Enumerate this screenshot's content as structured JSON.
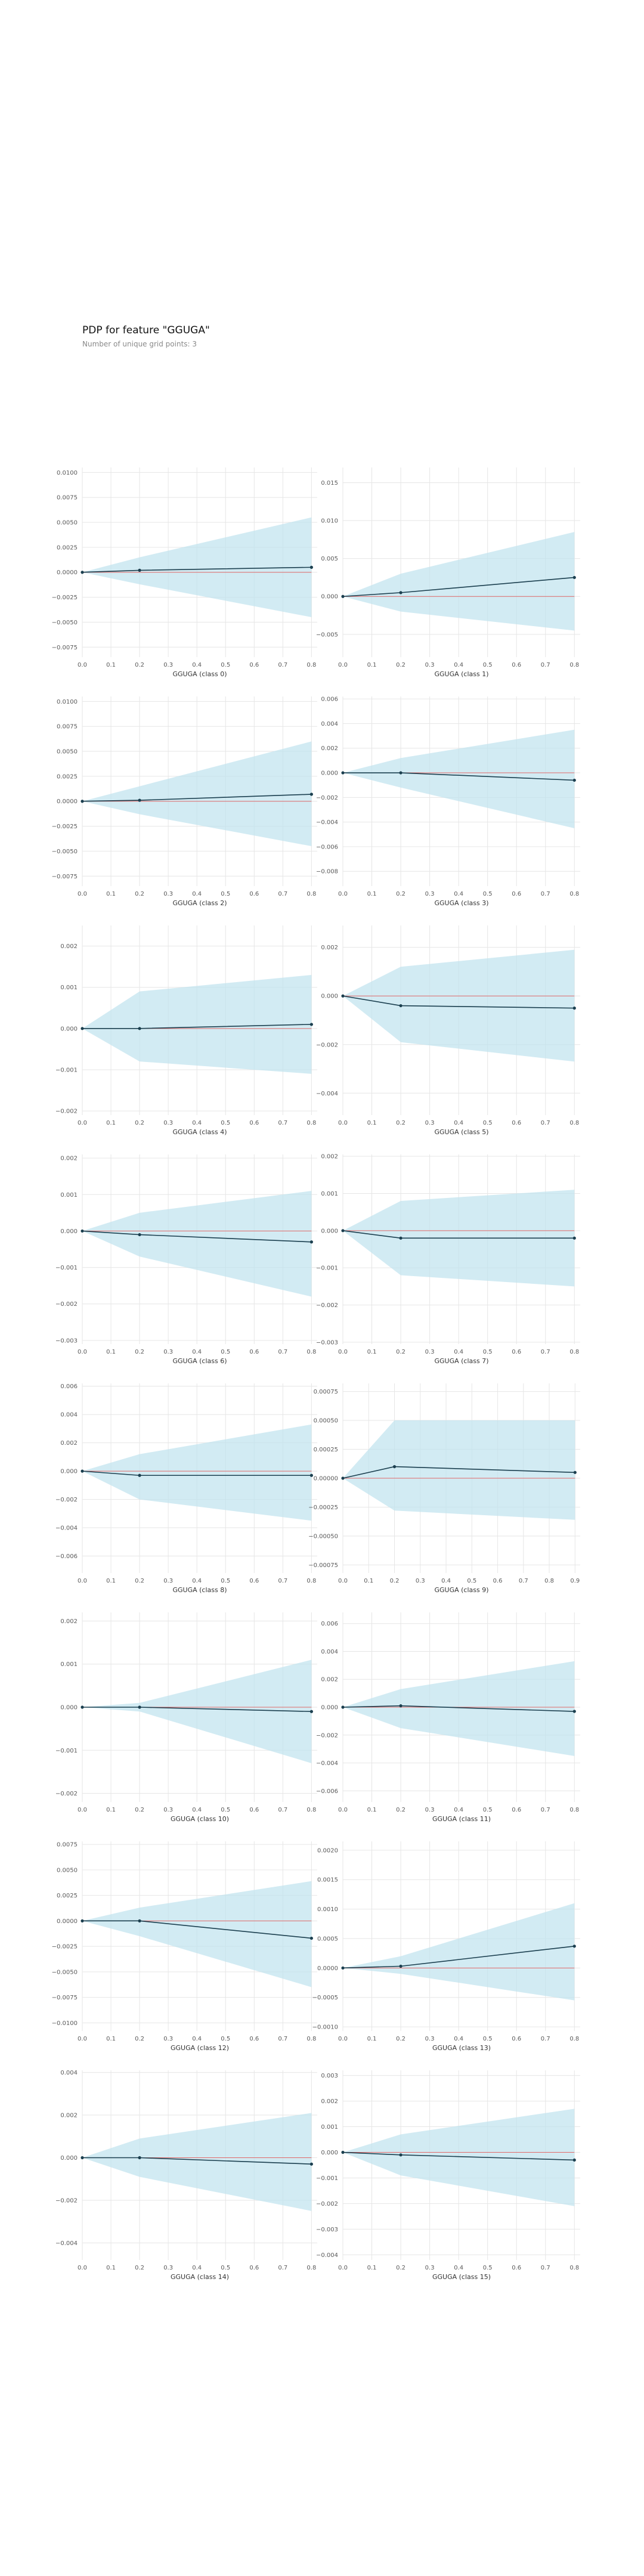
{
  "header": {
    "title": "PDP for feature \"GGUGA\"",
    "subtitle": "Number of unique grid points: 3"
  },
  "colors": {
    "band": "#bfe2ee",
    "line": "#1b3f4f",
    "baseline": "#e06868",
    "grid": "#e6e6e6",
    "tick_text": "#5a5a5a"
  },
  "chart_data": [
    {
      "type": "line",
      "xlabel": "GGUGA (class 0)",
      "x": [
        0.0,
        0.2,
        0.8
      ],
      "y": [
        0.0,
        0.0002,
        0.0005
      ],
      "lower": [
        0.0,
        -0.0012,
        -0.0045
      ],
      "upper": [
        0.0,
        0.0015,
        0.0055
      ],
      "ylim": [
        -0.0085,
        0.0105
      ],
      "yticks": [
        -0.0075,
        -0.005,
        -0.0025,
        0.0,
        0.0025,
        0.005,
        0.0075,
        0.01
      ],
      "ytick_labels": [
        "−0.0075",
        "−0.0050",
        "−0.0025",
        "0.0000",
        "0.0025",
        "0.0050",
        "0.0075",
        "0.0100"
      ],
      "xticks": [
        0.0,
        0.1,
        0.2,
        0.3,
        0.4,
        0.5,
        0.6,
        0.7,
        0.8
      ],
      "xtick_labels": [
        "0.0",
        "0.1",
        "0.2",
        "0.3",
        "0.4",
        "0.5",
        "0.6",
        "0.7",
        "0.8"
      ]
    },
    {
      "type": "line",
      "xlabel": "GGUGA (class 1)",
      "x": [
        0.0,
        0.2,
        0.8
      ],
      "y": [
        0.0,
        0.0005,
        0.0025
      ],
      "lower": [
        0.0,
        -0.002,
        -0.0045
      ],
      "upper": [
        0.0,
        0.003,
        0.0085
      ],
      "ylim": [
        -0.008,
        0.017
      ],
      "yticks": [
        -0.005,
        0.0,
        0.005,
        0.01,
        0.015
      ],
      "ytick_labels": [
        "−0.005",
        "0.000",
        "0.005",
        "0.010",
        "0.015"
      ],
      "xticks": [
        0.0,
        0.1,
        0.2,
        0.3,
        0.4,
        0.5,
        0.6,
        0.7,
        0.8
      ],
      "xtick_labels": [
        "0.0",
        "0.1",
        "0.2",
        "0.3",
        "0.4",
        "0.5",
        "0.6",
        "0.7",
        "0.8"
      ]
    },
    {
      "type": "line",
      "xlabel": "GGUGA (class 2)",
      "x": [
        0.0,
        0.2,
        0.8
      ],
      "y": [
        0.0,
        0.0001,
        0.0007
      ],
      "lower": [
        0.0,
        -0.0013,
        -0.0045
      ],
      "upper": [
        0.0,
        0.0015,
        0.006
      ],
      "ylim": [
        -0.0085,
        0.0105
      ],
      "yticks": [
        -0.0075,
        -0.005,
        -0.0025,
        0.0,
        0.0025,
        0.005,
        0.0075,
        0.01
      ],
      "ytick_labels": [
        "−0.0075",
        "−0.0050",
        "−0.0025",
        "0.0000",
        "0.0025",
        "0.0050",
        "0.0075",
        "0.0100"
      ],
      "xticks": [
        0.0,
        0.1,
        0.2,
        0.3,
        0.4,
        0.5,
        0.6,
        0.7,
        0.8
      ],
      "xtick_labels": [
        "0.0",
        "0.1",
        "0.2",
        "0.3",
        "0.4",
        "0.5",
        "0.6",
        "0.7",
        "0.8"
      ]
    },
    {
      "type": "line",
      "xlabel": "GGUGA (class 3)",
      "x": [
        0.0,
        0.2,
        0.8
      ],
      "y": [
        0.0,
        0.0,
        -0.0006
      ],
      "lower": [
        0.0,
        -0.0012,
        -0.0045
      ],
      "upper": [
        0.0,
        0.0012,
        0.0035
      ],
      "ylim": [
        -0.0092,
        0.0062
      ],
      "yticks": [
        -0.008,
        -0.006,
        -0.004,
        -0.002,
        0.0,
        0.002,
        0.004,
        0.006
      ],
      "ytick_labels": [
        "−0.008",
        "−0.006",
        "−0.004",
        "−0.002",
        "0.000",
        "0.002",
        "0.004",
        "0.006"
      ],
      "xticks": [
        0.0,
        0.1,
        0.2,
        0.3,
        0.4,
        0.5,
        0.6,
        0.7,
        0.8
      ],
      "xtick_labels": [
        "0.0",
        "0.1",
        "0.2",
        "0.3",
        "0.4",
        "0.5",
        "0.6",
        "0.7",
        "0.8"
      ]
    },
    {
      "type": "line",
      "xlabel": "GGUGA (class 4)",
      "x": [
        0.0,
        0.2,
        0.8
      ],
      "y": [
        0.0,
        0.0,
        0.0001
      ],
      "lower": [
        0.0,
        -0.0008,
        -0.0011
      ],
      "upper": [
        0.0,
        0.0009,
        0.0013
      ],
      "ylim": [
        -0.0021,
        0.0025
      ],
      "yticks": [
        -0.002,
        -0.001,
        0.0,
        0.001,
        0.002
      ],
      "ytick_labels": [
        "−0.002",
        "−0.001",
        "0.000",
        "0.001",
        "0.002"
      ],
      "xticks": [
        0.0,
        0.1,
        0.2,
        0.3,
        0.4,
        0.5,
        0.6,
        0.7,
        0.8
      ],
      "xtick_labels": [
        "0.0",
        "0.1",
        "0.2",
        "0.3",
        "0.4",
        "0.5",
        "0.6",
        "0.7",
        "0.8"
      ]
    },
    {
      "type": "line",
      "xlabel": "GGUGA (class 5)",
      "x": [
        0.0,
        0.2,
        0.8
      ],
      "y": [
        0.0,
        -0.0004,
        -0.0005
      ],
      "lower": [
        0.0,
        -0.0019,
        -0.0027
      ],
      "upper": [
        0.0,
        0.0012,
        0.0019
      ],
      "ylim": [
        -0.0049,
        0.0029
      ],
      "yticks": [
        -0.004,
        -0.002,
        0.0,
        0.002
      ],
      "ytick_labels": [
        "−0.004",
        "−0.002",
        "0.000",
        "0.002"
      ],
      "xticks": [
        0.0,
        0.1,
        0.2,
        0.3,
        0.4,
        0.5,
        0.6,
        0.7,
        0.8
      ],
      "xtick_labels": [
        "0.0",
        "0.1",
        "0.2",
        "0.3",
        "0.4",
        "0.5",
        "0.6",
        "0.7",
        "0.8"
      ]
    },
    {
      "type": "line",
      "xlabel": "GGUGA (class 6)",
      "x": [
        0.0,
        0.2,
        0.8
      ],
      "y": [
        0.0,
        -0.0001,
        -0.0003
      ],
      "lower": [
        0.0,
        -0.0007,
        -0.0018
      ],
      "upper": [
        0.0,
        0.0005,
        0.0011
      ],
      "ylim": [
        -0.0031,
        0.0021
      ],
      "yticks": [
        -0.003,
        -0.002,
        -0.001,
        0.0,
        0.001,
        0.002
      ],
      "ytick_labels": [
        "−0.003",
        "−0.002",
        "−0.001",
        "0.000",
        "0.001",
        "0.002"
      ],
      "xticks": [
        0.0,
        0.1,
        0.2,
        0.3,
        0.4,
        0.5,
        0.6,
        0.7,
        0.8
      ],
      "xtick_labels": [
        "0.0",
        "0.1",
        "0.2",
        "0.3",
        "0.4",
        "0.5",
        "0.6",
        "0.7",
        "0.8"
      ]
    },
    {
      "type": "line",
      "xlabel": "GGUGA (class 7)",
      "x": [
        0.0,
        0.2,
        0.8
      ],
      "y": [
        0.0,
        -0.0002,
        -0.0002
      ],
      "lower": [
        0.0,
        -0.0012,
        -0.0015
      ],
      "upper": [
        0.0,
        0.0008,
        0.0011
      ],
      "ylim": [
        -0.00305,
        0.00205
      ],
      "yticks": [
        -0.003,
        -0.002,
        -0.001,
        0.0,
        0.001,
        0.002
      ],
      "ytick_labels": [
        "−0.003",
        "−0.002",
        "−0.001",
        "0.000",
        "0.001",
        "0.002"
      ],
      "xticks": [
        0.0,
        0.1,
        0.2,
        0.3,
        0.4,
        0.5,
        0.6,
        0.7,
        0.8
      ],
      "xtick_labels": [
        "0.0",
        "0.1",
        "0.2",
        "0.3",
        "0.4",
        "0.5",
        "0.6",
        "0.7",
        "0.8"
      ]
    },
    {
      "type": "line",
      "xlabel": "GGUGA (class 8)",
      "x": [
        0.0,
        0.2,
        0.8
      ],
      "y": [
        0.0,
        -0.0003,
        -0.0003
      ],
      "lower": [
        0.0,
        -0.002,
        -0.0035
      ],
      "upper": [
        0.0,
        0.0012,
        0.0033
      ],
      "ylim": [
        -0.0072,
        0.0062
      ],
      "yticks": [
        -0.006,
        -0.004,
        -0.002,
        0.0,
        0.002,
        0.004,
        0.006
      ],
      "ytick_labels": [
        "−0.006",
        "−0.004",
        "−0.002",
        "0.000",
        "0.002",
        "0.004",
        "0.006"
      ],
      "xticks": [
        0.0,
        0.1,
        0.2,
        0.3,
        0.4,
        0.5,
        0.6,
        0.7,
        0.8
      ],
      "xtick_labels": [
        "0.0",
        "0.1",
        "0.2",
        "0.3",
        "0.4",
        "0.5",
        "0.6",
        "0.7",
        "0.8"
      ]
    },
    {
      "type": "line",
      "xlabel": "GGUGA (class 9)",
      "x": [
        0.0,
        0.2,
        0.9
      ],
      "y": [
        0.0,
        0.0001,
        5e-05
      ],
      "lower": [
        0.0,
        -0.00028,
        -0.00036
      ],
      "upper": [
        0.0,
        0.0005,
        0.0005
      ],
      "ylim": [
        -0.00082,
        0.00082
      ],
      "yticks": [
        -0.00075,
        -0.0005,
        -0.00025,
        0.0,
        0.00025,
        0.0005,
        0.00075
      ],
      "ytick_labels": [
        "−0.00075",
        "−0.00050",
        "−0.00025",
        "0.00000",
        "0.00025",
        "0.00050",
        "0.00075"
      ],
      "xticks": [
        0.0,
        0.1,
        0.2,
        0.3,
        0.4,
        0.5,
        0.6,
        0.7,
        0.8,
        0.9
      ],
      "xtick_labels": [
        "0.0",
        "0.1",
        "0.2",
        "0.3",
        "0.4",
        "0.5",
        "0.6",
        "0.7",
        "0.8",
        "0.9"
      ]
    },
    {
      "type": "line",
      "xlabel": "GGUGA (class 10)",
      "x": [
        0.0,
        0.2,
        0.8
      ],
      "y": [
        0.0,
        0.0,
        -0.0001
      ],
      "lower": [
        0.0,
        -0.0001,
        -0.0013
      ],
      "upper": [
        0.0,
        0.0001,
        0.0011
      ],
      "ylim": [
        -0.0022,
        0.0022
      ],
      "yticks": [
        -0.002,
        -0.001,
        0.0,
        0.001,
        0.002
      ],
      "ytick_labels": [
        "−0.002",
        "−0.001",
        "0.000",
        "0.001",
        "0.002"
      ],
      "xticks": [
        0.0,
        0.1,
        0.2,
        0.3,
        0.4,
        0.5,
        0.6,
        0.7,
        0.8
      ],
      "xtick_labels": [
        "0.0",
        "0.1",
        "0.2",
        "0.3",
        "0.4",
        "0.5",
        "0.6",
        "0.7",
        "0.8"
      ]
    },
    {
      "type": "line",
      "xlabel": "GGUGA (class 11)",
      "x": [
        0.0,
        0.2,
        0.8
      ],
      "y": [
        0.0,
        0.0001,
        -0.0003
      ],
      "lower": [
        0.0,
        -0.0015,
        -0.0035
      ],
      "upper": [
        0.0,
        0.0013,
        0.0033
      ],
      "ylim": [
        -0.0068,
        0.0068
      ],
      "yticks": [
        -0.006,
        -0.004,
        -0.002,
        0.0,
        0.002,
        0.004,
        0.006
      ],
      "ytick_labels": [
        "−0.006",
        "−0.004",
        "−0.002",
        "0.000",
        "0.002",
        "0.004",
        "0.006"
      ],
      "xticks": [
        0.0,
        0.1,
        0.2,
        0.3,
        0.4,
        0.5,
        0.6,
        0.7,
        0.8
      ],
      "xtick_labels": [
        "0.0",
        "0.1",
        "0.2",
        "0.3",
        "0.4",
        "0.5",
        "0.6",
        "0.7",
        "0.8"
      ]
    },
    {
      "type": "line",
      "xlabel": "GGUGA (class 12)",
      "x": [
        0.0,
        0.2,
        0.8
      ],
      "y": [
        0.0,
        0.0,
        -0.0017
      ],
      "lower": [
        0.0,
        -0.0015,
        -0.0065
      ],
      "upper": [
        0.0,
        0.0013,
        0.0039
      ],
      "ylim": [
        -0.0108,
        0.0078
      ],
      "yticks": [
        -0.01,
        -0.0075,
        -0.005,
        -0.0025,
        0.0,
        0.0025,
        0.005,
        0.0075
      ],
      "ytick_labels": [
        "−0.0100",
        "−0.0075",
        "−0.0050",
        "−0.0025",
        "0.0000",
        "0.0025",
        "0.0050",
        "0.0075"
      ],
      "xticks": [
        0.0,
        0.1,
        0.2,
        0.3,
        0.4,
        0.5,
        0.6,
        0.7,
        0.8
      ],
      "xtick_labels": [
        "0.0",
        "0.1",
        "0.2",
        "0.3",
        "0.4",
        "0.5",
        "0.6",
        "0.7",
        "0.8"
      ]
    },
    {
      "type": "line",
      "xlabel": "GGUGA (class 13)",
      "x": [
        0.0,
        0.2,
        0.8
      ],
      "y": [
        0.0,
        3e-05,
        0.00037
      ],
      "lower": [
        0.0,
        -0.0001,
        -0.00055
      ],
      "upper": [
        0.0,
        0.0002,
        0.0011
      ],
      "ylim": [
        -0.00107,
        0.00215
      ],
      "yticks": [
        -0.001,
        -0.0005,
        0.0,
        0.0005,
        0.001,
        0.0015,
        0.002
      ],
      "ytick_labels": [
        "−0.0010",
        "−0.0005",
        "0.0000",
        "0.0005",
        "0.0010",
        "0.0015",
        "0.0020"
      ],
      "xticks": [
        0.0,
        0.1,
        0.2,
        0.3,
        0.4,
        0.5,
        0.6,
        0.7,
        0.8
      ],
      "xtick_labels": [
        "0.0",
        "0.1",
        "0.2",
        "0.3",
        "0.4",
        "0.5",
        "0.6",
        "0.7",
        "0.8"
      ]
    },
    {
      "type": "line",
      "xlabel": "GGUGA (class 14)",
      "x": [
        0.0,
        0.2,
        0.8
      ],
      "y": [
        0.0,
        0.0,
        -0.0003
      ],
      "lower": [
        0.0,
        -0.0009,
        -0.0025
      ],
      "upper": [
        0.0,
        0.0009,
        0.0021
      ],
      "ylim": [
        -0.0048,
        0.0041
      ],
      "yticks": [
        -0.004,
        -0.002,
        0.0,
        0.002,
        0.004
      ],
      "ytick_labels": [
        "−0.004",
        "−0.002",
        "0.000",
        "0.002",
        "0.004"
      ],
      "xticks": [
        0.0,
        0.1,
        0.2,
        0.3,
        0.4,
        0.5,
        0.6,
        0.7,
        0.8
      ],
      "xtick_labels": [
        "0.0",
        "0.1",
        "0.2",
        "0.3",
        "0.4",
        "0.5",
        "0.6",
        "0.7",
        "0.8"
      ]
    },
    {
      "type": "line",
      "xlabel": "GGUGA (class 15)",
      "x": [
        0.0,
        0.2,
        0.8
      ],
      "y": [
        0.0,
        -0.0001,
        -0.0003
      ],
      "lower": [
        0.0,
        -0.0009,
        -0.0021
      ],
      "upper": [
        0.0,
        0.0007,
        0.0017
      ],
      "ylim": [
        -0.0042,
        0.0032
      ],
      "yticks": [
        -0.004,
        -0.003,
        -0.002,
        -0.001,
        0.0,
        0.001,
        0.002,
        0.003
      ],
      "ytick_labels": [
        "−0.004",
        "−0.003",
        "−0.002",
        "−0.001",
        "0.000",
        "0.001",
        "0.002",
        "0.003"
      ],
      "xticks": [
        0.0,
        0.1,
        0.2,
        0.3,
        0.4,
        0.5,
        0.6,
        0.7,
        0.8
      ],
      "xtick_labels": [
        "0.0",
        "0.1",
        "0.2",
        "0.3",
        "0.4",
        "0.5",
        "0.6",
        "0.7",
        "0.8"
      ]
    }
  ]
}
